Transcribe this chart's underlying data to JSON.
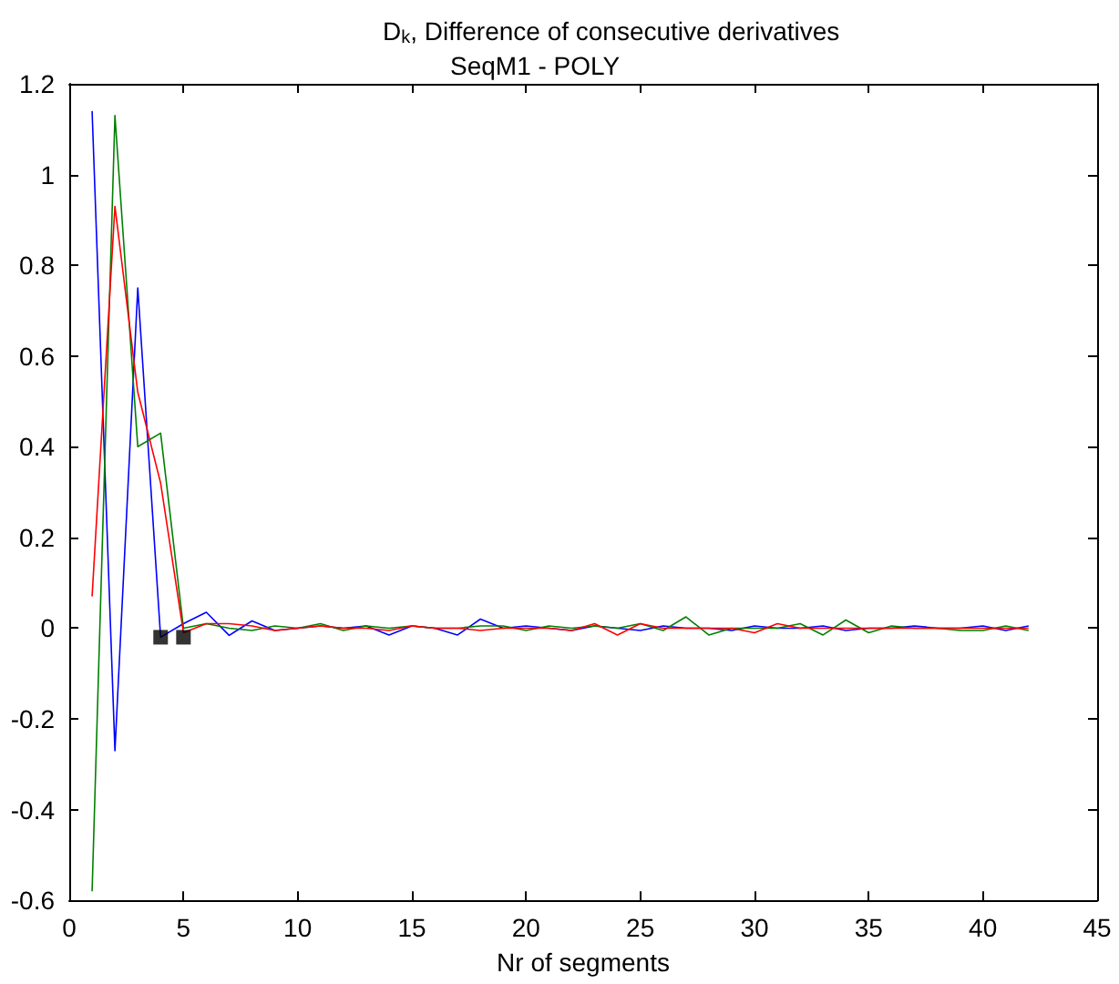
{
  "chart_data": {
    "type": "line",
    "title": "D$_{k}$, Difference of consecutive derivatives",
    "subtitle": "SeqM1 - POLY",
    "xlabel": "Nr of segments",
    "x": [
      1,
      2,
      3,
      4,
      5,
      6,
      7,
      8,
      9,
      10,
      11,
      12,
      13,
      14,
      15,
      16,
      17,
      18,
      19,
      20,
      21,
      22,
      23,
      24,
      25,
      26,
      27,
      28,
      29,
      30,
      31,
      32,
      33,
      34,
      35,
      36,
      37,
      38,
      39,
      40,
      41,
      42
    ],
    "series": [
      {
        "color": "#0000ff",
        "values": [
          1.14,
          -0.27,
          0.75,
          -0.02,
          0.01,
          0.035,
          -0.016,
          0.016,
          -0.005,
          0.0,
          0.005,
          0.0,
          0.005,
          -0.015,
          0.005,
          0.0,
          -0.015,
          0.02,
          0.0,
          0.005,
          0.0,
          -0.005,
          0.005,
          0.0,
          -0.005,
          0.005,
          0.0,
          0.0,
          -0.005,
          0.005,
          0.0,
          0.0,
          0.005,
          -0.005,
          0.0,
          0.0,
          0.005,
          0.0,
          0.0,
          0.005,
          -0.005,
          0.005
        ]
      },
      {
        "color": "#008000",
        "values": [
          -0.58,
          1.13,
          0.4,
          0.43,
          0.0,
          0.01,
          0.0,
          -0.005,
          0.005,
          0.0,
          0.01,
          -0.005,
          0.005,
          0.0,
          0.005,
          0.0,
          0.0,
          0.005,
          0.005,
          -0.005,
          0.005,
          0.0,
          0.005,
          0.0,
          0.01,
          -0.005,
          0.025,
          -0.015,
          0.0,
          0.0,
          0.0,
          0.01,
          -0.015,
          0.018,
          -0.01,
          0.005,
          0.0,
          0.0,
          -0.005,
          -0.005,
          0.005,
          -0.005
        ]
      },
      {
        "color": "#ff0000",
        "values": [
          0.07,
          0.93,
          0.52,
          0.32,
          -0.01,
          0.01,
          0.01,
          0.005,
          -0.005,
          0.0,
          0.005,
          0.0,
          0.0,
          -0.005,
          0.005,
          0.0,
          0.0,
          -0.005,
          0.0,
          0.0,
          0.0,
          -0.005,
          0.01,
          -0.015,
          0.01,
          0.0,
          0.0,
          0.0,
          0.0,
          -0.01,
          0.01,
          0.0,
          0.0,
          0.0,
          0.0,
          0.0,
          0.0,
          0.0,
          0.0,
          0.0,
          0.0,
          0.0
        ]
      },
      {
        "type": "scatter",
        "color": "#000000",
        "marker": "square",
        "x": [
          4,
          5
        ],
        "values": [
          -0.02,
          -0.02
        ]
      }
    ],
    "xlim": [
      0,
      45
    ],
    "xticks": [
      0,
      5,
      10,
      15,
      20,
      25,
      30,
      35,
      40,
      45
    ],
    "ylim": [
      -0.6,
      1.2
    ],
    "yticks": [
      -0.6,
      -0.4,
      -0.2,
      0,
      0.2,
      0.4,
      0.6,
      0.8,
      1,
      1.2
    ],
    "grid": false,
    "marker": "none",
    "line_style": "solid"
  }
}
